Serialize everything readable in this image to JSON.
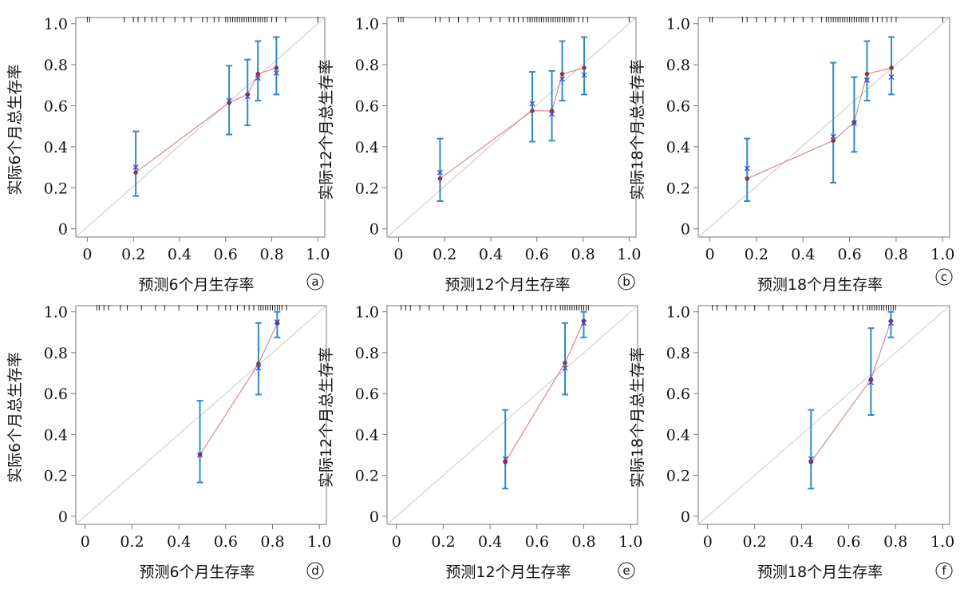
{
  "chart_data": [
    {
      "id": "a",
      "type": "scatter",
      "xlabel": "预测6个月生存率",
      "ylabel": "实际6个月总生存率",
      "xticks": [
        "0",
        "0.2",
        "0.4",
        "0.6",
        "0.8",
        "1.0"
      ],
      "yticks": [
        "0",
        "0.2",
        "0.4",
        "0.6",
        "0.8",
        "1.0"
      ],
      "xlim": [
        -0.05,
        1.03
      ],
      "ylim": [
        -0.04,
        1.03
      ],
      "observed": [
        {
          "x": 0.21,
          "y": 0.275,
          "lo": 0.16,
          "hi": 0.475
        },
        {
          "x": 0.615,
          "y": 0.615,
          "lo": 0.46,
          "hi": 0.795
        },
        {
          "x": 0.695,
          "y": 0.655,
          "lo": 0.505,
          "hi": 0.825
        },
        {
          "x": 0.74,
          "y": 0.755,
          "lo": 0.625,
          "hi": 0.915
        },
        {
          "x": 0.82,
          "y": 0.785,
          "lo": 0.655,
          "hi": 0.935
        }
      ],
      "corrected": [
        0.3,
        0.625,
        0.645,
        0.735,
        0.76
      ],
      "rug": [
        0.0,
        0.01,
        0.16,
        0.2,
        0.22,
        0.25,
        0.28,
        0.3,
        0.33,
        0.38,
        0.42,
        0.45,
        0.5,
        0.52,
        0.55,
        0.57,
        0.6,
        0.61,
        0.62,
        0.63,
        0.64,
        0.65,
        0.66,
        0.67,
        0.68,
        0.69,
        0.7,
        0.71,
        0.72,
        0.73,
        0.74,
        0.75,
        0.76,
        0.77,
        0.78,
        0.8,
        0.82,
        0.86,
        1.0
      ],
      "tag": "a"
    },
    {
      "id": "b",
      "type": "scatter",
      "xlabel": "预测12个月生存率",
      "ylabel": "实际12个月总生存率",
      "xticks": [
        "0",
        "0.2",
        "0.4",
        "0.6",
        "0.8",
        "1.0"
      ],
      "yticks": [
        "0",
        "0.2",
        "0.4",
        "0.6",
        "0.8",
        "1.0"
      ],
      "xlim": [
        -0.05,
        1.03
      ],
      "ylim": [
        -0.04,
        1.03
      ],
      "observed": [
        {
          "x": 0.18,
          "y": 0.245,
          "lo": 0.135,
          "hi": 0.44
        },
        {
          "x": 0.58,
          "y": 0.575,
          "lo": 0.425,
          "hi": 0.765
        },
        {
          "x": 0.665,
          "y": 0.575,
          "lo": 0.43,
          "hi": 0.77
        },
        {
          "x": 0.71,
          "y": 0.755,
          "lo": 0.625,
          "hi": 0.915
        },
        {
          "x": 0.805,
          "y": 0.785,
          "lo": 0.655,
          "hi": 0.935
        }
      ],
      "corrected": [
        0.275,
        0.61,
        0.56,
        0.73,
        0.75
      ],
      "rug": [
        0.0,
        0.01,
        0.02,
        0.16,
        0.18,
        0.22,
        0.26,
        0.3,
        0.35,
        0.4,
        0.44,
        0.48,
        0.5,
        0.52,
        0.54,
        0.56,
        0.57,
        0.58,
        0.59,
        0.6,
        0.61,
        0.62,
        0.63,
        0.64,
        0.65,
        0.66,
        0.67,
        0.68,
        0.69,
        0.7,
        0.71,
        0.72,
        0.73,
        0.74,
        0.75,
        0.76,
        0.78,
        0.8,
        0.82,
        1.0
      ],
      "tag": "b"
    },
    {
      "id": "c",
      "type": "scatter",
      "xlabel": "预测18个月生存率",
      "ylabel": "实际18个月总生存率",
      "xticks": [
        "0",
        "0.2",
        "0.4",
        "0.6",
        "0.8",
        "1.0"
      ],
      "yticks": [
        "0",
        "0.2",
        "0.4",
        "0.6",
        "0.8",
        "1.0"
      ],
      "xlim": [
        -0.05,
        1.03
      ],
      "ylim": [
        -0.04,
        1.03
      ],
      "observed": [
        {
          "x": 0.16,
          "y": 0.245,
          "lo": 0.135,
          "hi": 0.44
        },
        {
          "x": 0.53,
          "y": 0.43,
          "lo": 0.225,
          "hi": 0.81
        },
        {
          "x": 0.62,
          "y": 0.52,
          "lo": 0.375,
          "hi": 0.74
        },
        {
          "x": 0.675,
          "y": 0.755,
          "lo": 0.625,
          "hi": 0.915
        },
        {
          "x": 0.78,
          "y": 0.785,
          "lo": 0.655,
          "hi": 0.935
        }
      ],
      "corrected": [
        0.295,
        0.45,
        0.515,
        0.725,
        0.74
      ],
      "rug": [
        0.0,
        0.01,
        0.14,
        0.16,
        0.2,
        0.24,
        0.28,
        0.32,
        0.36,
        0.4,
        0.44,
        0.48,
        0.5,
        0.51,
        0.52,
        0.53,
        0.54,
        0.55,
        0.56,
        0.57,
        0.58,
        0.59,
        0.6,
        0.61,
        0.62,
        0.63,
        0.64,
        0.65,
        0.66,
        0.67,
        0.68,
        0.7,
        0.72,
        0.74,
        0.76,
        0.78,
        0.8,
        1.0
      ],
      "tag": "c"
    },
    {
      "id": "d",
      "type": "scatter",
      "xlabel": "预测6个月生存率",
      "ylabel": "实际6个月总生存率",
      "xticks": [
        "0",
        "0.2",
        "0.4",
        "0.6",
        "0.8",
        "1.0"
      ],
      "yticks": [
        "0",
        "0.2",
        "0.4",
        "0.6",
        "0.8",
        "1.0"
      ],
      "xlim": [
        -0.04,
        1.03
      ],
      "ylim": [
        -0.04,
        1.03
      ],
      "observed": [
        {
          "x": 0.49,
          "y": 0.3,
          "lo": 0.165,
          "hi": 0.565
        },
        {
          "x": 0.74,
          "y": 0.745,
          "lo": 0.595,
          "hi": 0.945
        },
        {
          "x": 0.82,
          "y": 0.945,
          "lo": 0.875,
          "hi": 1.0
        }
      ],
      "corrected": [
        0.3,
        0.725,
        0.95
      ],
      "rug": [
        0.05,
        0.06,
        0.08,
        0.1,
        0.15,
        0.18,
        0.24,
        0.3,
        0.34,
        0.4,
        0.48,
        0.52,
        0.57,
        0.6,
        0.62,
        0.65,
        0.68,
        0.7,
        0.72,
        0.74,
        0.75,
        0.76,
        0.77,
        0.78,
        0.79,
        0.8,
        0.81,
        0.82,
        0.83,
        0.84,
        0.86
      ],
      "tag": "d"
    },
    {
      "id": "e",
      "type": "scatter",
      "xlabel": "预测12个月生存率",
      "ylabel": "实际12个月总生存率",
      "xticks": [
        "0",
        "0.2",
        "0.4",
        "0.6",
        "0.8",
        "1.0"
      ],
      "yticks": [
        "0",
        "0.2",
        "0.4",
        "0.6",
        "0.8",
        "1.0"
      ],
      "xlim": [
        -0.04,
        1.03
      ],
      "ylim": [
        -0.04,
        1.03
      ],
      "observed": [
        {
          "x": 0.465,
          "y": 0.265,
          "lo": 0.135,
          "hi": 0.52
        },
        {
          "x": 0.72,
          "y": 0.75,
          "lo": 0.595,
          "hi": 0.945
        },
        {
          "x": 0.8,
          "y": 0.955,
          "lo": 0.875,
          "hi": 1.0
        }
      ],
      "corrected": [
        0.28,
        0.725,
        0.945
      ],
      "rug": [
        0.02,
        0.04,
        0.06,
        0.1,
        0.14,
        0.2,
        0.26,
        0.3,
        0.36,
        0.42,
        0.46,
        0.5,
        0.54,
        0.58,
        0.62,
        0.64,
        0.66,
        0.68,
        0.7,
        0.71,
        0.72,
        0.73,
        0.74,
        0.75,
        0.76,
        0.77,
        0.78,
        0.79,
        0.8,
        0.81,
        0.82
      ],
      "tag": "e"
    },
    {
      "id": "f",
      "type": "scatter",
      "xlabel": "预测18个月生存率",
      "ylabel": "实际18个月总生存率",
      "xticks": [
        "0",
        "0.2",
        "0.4",
        "0.6",
        "0.8",
        "1.0"
      ],
      "yticks": [
        "0",
        "0.2",
        "0.4",
        "0.6",
        "0.8",
        "1.0"
      ],
      "xlim": [
        -0.04,
        1.03
      ],
      "ylim": [
        -0.04,
        1.03
      ],
      "observed": [
        {
          "x": 0.44,
          "y": 0.265,
          "lo": 0.135,
          "hi": 0.52
        },
        {
          "x": 0.695,
          "y": 0.67,
          "lo": 0.495,
          "hi": 0.92
        },
        {
          "x": 0.78,
          "y": 0.955,
          "lo": 0.875,
          "hi": 1.0
        }
      ],
      "corrected": [
        0.28,
        0.655,
        0.945
      ],
      "rug": [
        0.02,
        0.04,
        0.08,
        0.12,
        0.16,
        0.2,
        0.26,
        0.32,
        0.38,
        0.42,
        0.46,
        0.5,
        0.54,
        0.58,
        0.62,
        0.64,
        0.66,
        0.68,
        0.69,
        0.7,
        0.71,
        0.72,
        0.73,
        0.74,
        0.75,
        0.76,
        0.77,
        0.78,
        0.79,
        0.8
      ],
      "tag": "f"
    }
  ],
  "colors": {
    "ideal_line": "#c8c8c8",
    "observed_line": "#d98a8a",
    "observed_point": "#8b3a3a",
    "error_bar": "#2b8bc9",
    "corrected_marker": "#3b3bdd",
    "frame": "#777777",
    "text": "#111111"
  }
}
